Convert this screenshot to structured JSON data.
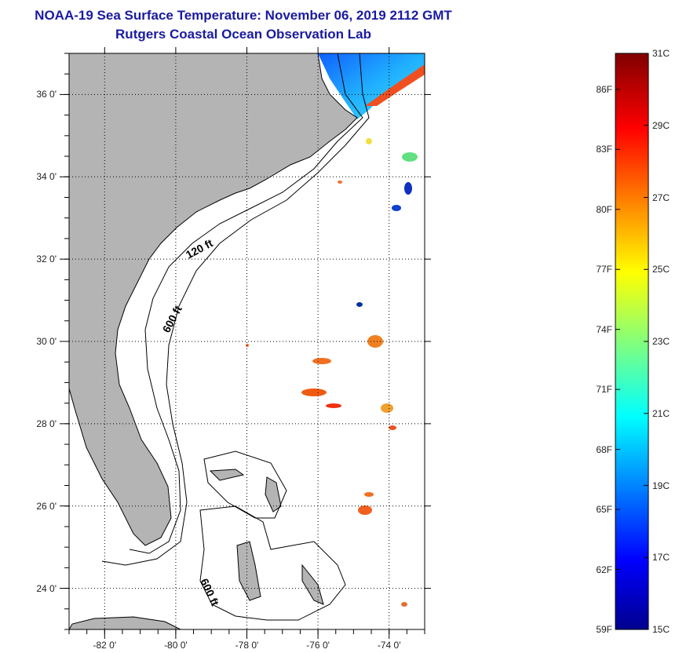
{
  "header": {
    "title": "NOAA-19 Sea Surface Temperature:  November 06, 2019 2112 GMT",
    "subtitle": "Rutgers Coastal Ocean Observation Lab"
  },
  "map": {
    "lon_range": [
      -83,
      -73
    ],
    "lat_range": [
      23,
      37
    ],
    "lon_ticks": [
      -82,
      -80,
      -78,
      -76,
      -74
    ],
    "lon_labels": [
      "-82 0'",
      "-80 0'",
      "-78 0'",
      "-76 0'",
      "-74 0'"
    ],
    "lat_ticks": [
      36,
      34,
      32,
      30,
      28,
      26,
      24
    ],
    "lat_labels": [
      "36 0'",
      "34 0'",
      "32 0'",
      "30 0'",
      "28 0'",
      "26 0'",
      "24 0'"
    ],
    "contour_labels": [
      "120 ft",
      "600 ft",
      "600 ft"
    ],
    "colors": {
      "land": "#b4b4b4",
      "background": "#ffffff",
      "grid": "#000000"
    }
  },
  "colorbar": {
    "min_c": 15,
    "max_c": 31,
    "celsius_labels": [
      "31C",
      "29C",
      "27C",
      "25C",
      "23C",
      "21C",
      "19C",
      "17C",
      "15C"
    ],
    "celsius_values": [
      31,
      29,
      27,
      25,
      23,
      21,
      19,
      17,
      15
    ],
    "fahrenheit_labels": [
      "86F",
      "83F",
      "80F",
      "77F",
      "74F",
      "71F",
      "68F",
      "65F",
      "62F",
      "59F"
    ],
    "fahrenheit_values": [
      86,
      83,
      80,
      77,
      74,
      71,
      68,
      65,
      62,
      59
    ],
    "colormap": [
      "#00008f",
      "#0000ff",
      "#00ffff",
      "#ffff00",
      "#ff0000",
      "#800000"
    ]
  }
}
